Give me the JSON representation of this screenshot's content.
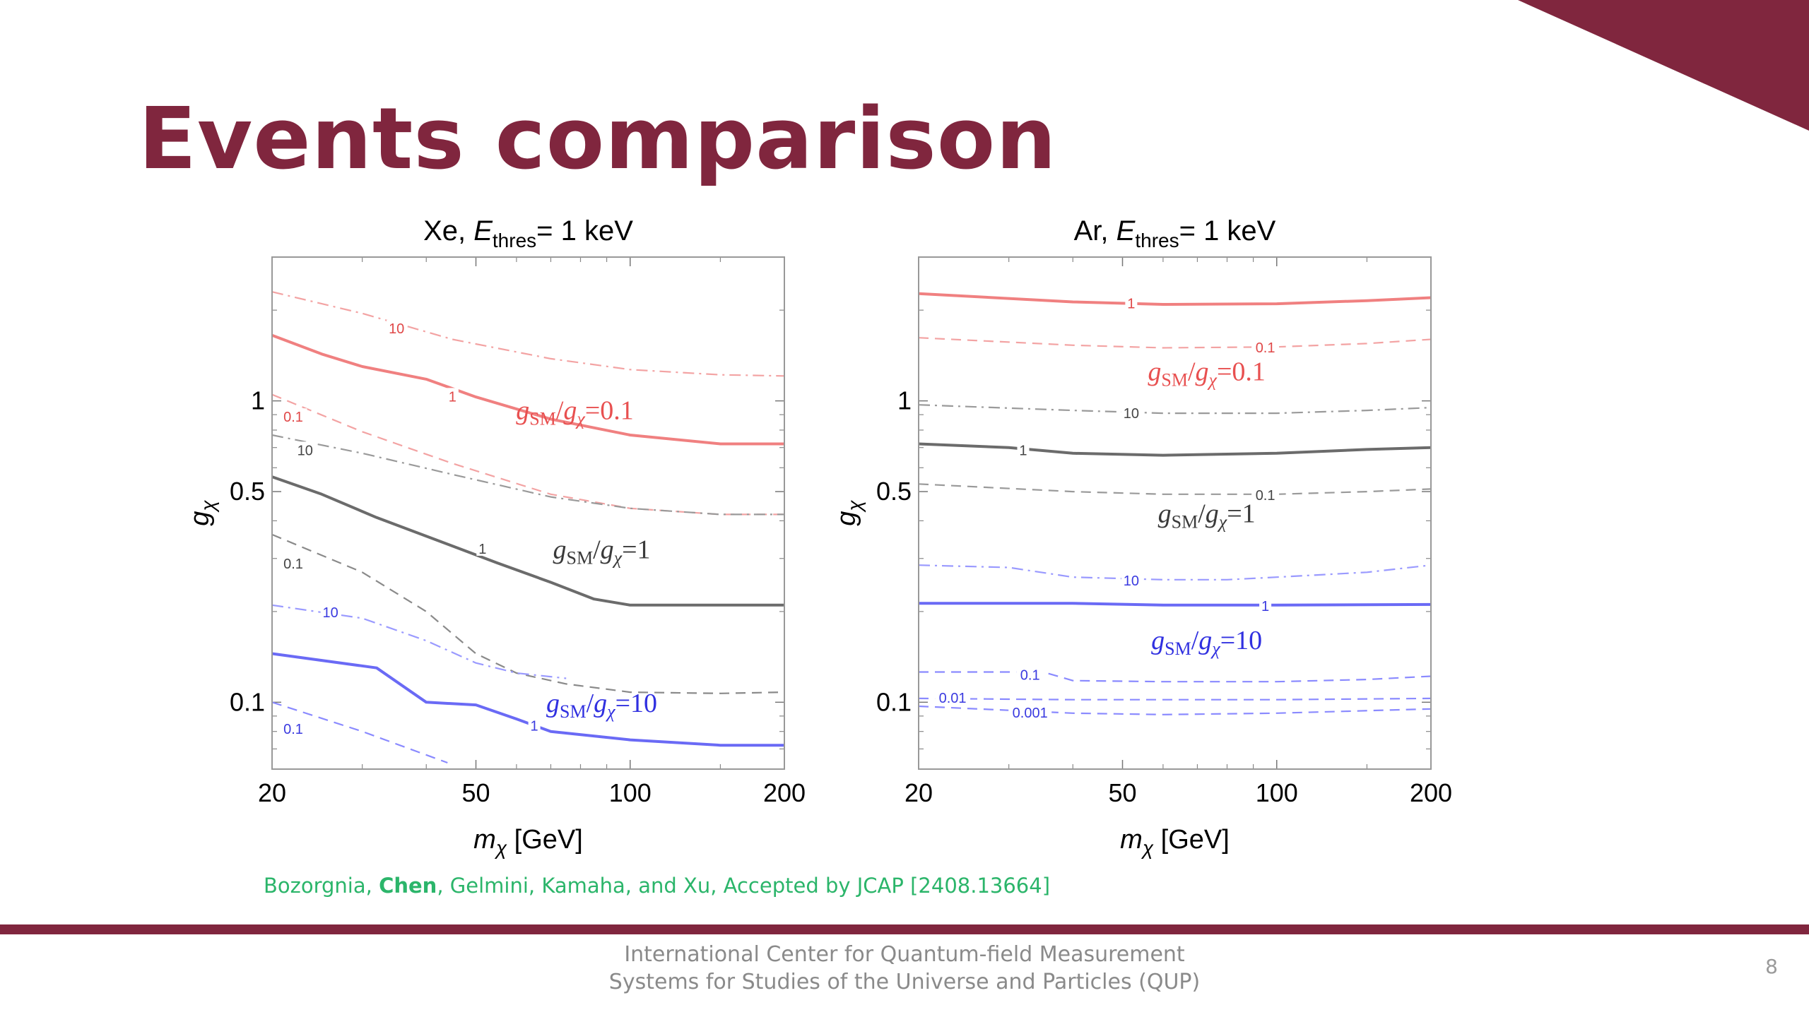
{
  "slide": {
    "title": "Events comparison",
    "citation": {
      "before": "Bozorgnia, ",
      "highlight": "Chen",
      "after": ", Gelmini, Kamaha, and Xu, Accepted by JCAP [2408.13664]"
    },
    "footer_line1": "International Center for Quantum-field Measurement",
    "footer_line2": "Systems for Studies of the Universe and Particles (QUP)",
    "page_number": "8",
    "colors": {
      "accent": "#80263e",
      "citation": "#2bb56a",
      "footer_text": "#8a8a8a"
    }
  },
  "chart_data": [
    {
      "type": "line",
      "panel": "Xe",
      "title": "Xe, E_thres= 1 keV",
      "title_parts": {
        "prefix": "Xe, ",
        "E": "E",
        "sub": "thres",
        "suffix": "= 1 keV"
      },
      "xlabel_parts": {
        "m": "m",
        "sub": "χ",
        "suffix": " [GeV]"
      },
      "ylabel_parts": {
        "g": "g",
        "sub": "χ"
      },
      "x_scale": "log",
      "y_scale": "log",
      "xlim": [
        20,
        200
      ],
      "ylim": [
        0.06,
        3.0
      ],
      "x_ticks": [
        20,
        50,
        100,
        200
      ],
      "x_tick_labels": [
        "20",
        "50",
        "100",
        "200"
      ],
      "y_ticks": [
        0.1,
        0.5,
        1
      ],
      "y_tick_labels": [
        "0.1",
        "0.5",
        "1"
      ],
      "series": [
        {
          "group": "red",
          "style": "dashdot",
          "contour": "10",
          "color": "#f3a3a3",
          "x": [
            20,
            30,
            45,
            70,
            100,
            150,
            200
          ],
          "y": [
            2.3,
            1.95,
            1.6,
            1.38,
            1.27,
            1.22,
            1.21
          ]
        },
        {
          "group": "red",
          "style": "solid",
          "contour": "1",
          "color": "#f08080",
          "x": [
            20,
            25,
            30,
            40,
            50,
            70,
            100,
            150,
            200
          ],
          "y": [
            1.65,
            1.43,
            1.3,
            1.18,
            1.03,
            0.87,
            0.77,
            0.72,
            0.72
          ]
        },
        {
          "group": "red",
          "style": "dashed",
          "contour": "0.1",
          "color": "#f3a3a3",
          "x": [
            20,
            30,
            45,
            70,
            100,
            150,
            200
          ],
          "y": [
            1.05,
            0.79,
            0.62,
            0.49,
            0.44,
            0.42,
            0.42
          ]
        },
        {
          "group": "black",
          "style": "dashdot",
          "contour": "10",
          "color": "#9a9a9a",
          "x": [
            20,
            30,
            45,
            70,
            100,
            150,
            200
          ],
          "y": [
            0.77,
            0.67,
            0.57,
            0.48,
            0.44,
            0.42,
            0.42
          ]
        },
        {
          "group": "black",
          "style": "solid",
          "contour": "1",
          "color": "#6b6b6b",
          "x": [
            20,
            25,
            32,
            45,
            55,
            70,
            85,
            100,
            140,
            200
          ],
          "y": [
            0.56,
            0.49,
            0.41,
            0.33,
            0.29,
            0.25,
            0.22,
            0.21,
            0.21,
            0.21
          ]
        },
        {
          "group": "black",
          "style": "dashed",
          "contour": "0.1",
          "color": "#8a8a8a",
          "x": [
            20,
            30,
            40,
            50,
            60,
            75,
            100,
            150,
            200
          ],
          "y": [
            0.36,
            0.27,
            0.2,
            0.145,
            0.125,
            0.115,
            0.108,
            0.107,
            0.108
          ]
        },
        {
          "group": "blue",
          "style": "dashdot",
          "contour": "10",
          "color": "#9a9aff",
          "x": [
            20,
            30,
            40,
            50,
            60,
            75
          ],
          "y": [
            0.21,
            0.19,
            0.16,
            0.135,
            0.125,
            0.12
          ]
        },
        {
          "group": "blue",
          "style": "solid",
          "contour": "1",
          "color": "#6a6af5",
          "x": [
            20,
            32,
            40,
            50,
            60,
            70,
            100,
            150,
            200
          ],
          "y": [
            0.145,
            0.13,
            0.1,
            0.098,
            0.088,
            0.08,
            0.075,
            0.072,
            0.072
          ]
        },
        {
          "group": "blue",
          "style": "dashed",
          "contour": "0.1",
          "color": "#8a8aff",
          "x": [
            20,
            30,
            44
          ],
          "y": [
            0.1,
            0.08,
            0.063
          ]
        }
      ],
      "contour_labels": [
        {
          "text": "10",
          "x": 35,
          "y": 1.75,
          "color": "#e04848"
        },
        {
          "text": "1",
          "x": 45,
          "y": 1.04,
          "color": "#e04848"
        },
        {
          "text": "0.1",
          "x": 22,
          "y": 0.89,
          "color": "#e04848"
        },
        {
          "text": "10",
          "x": 23.2,
          "y": 0.69,
          "color": "#444444"
        },
        {
          "text": "1",
          "x": 51.5,
          "y": 0.325,
          "color": "#444444"
        },
        {
          "text": "0.1",
          "x": 22,
          "y": 0.29,
          "color": "#444444"
        },
        {
          "text": "10",
          "x": 26,
          "y": 0.2,
          "color": "#3a3ae0"
        },
        {
          "text": "1",
          "x": 65,
          "y": 0.084,
          "color": "#3a3ae0"
        },
        {
          "text": "0.1",
          "x": 22,
          "y": 0.082,
          "color": "#3a3ae0"
        }
      ],
      "annotations": [
        {
          "ratio": "0.1",
          "x": 78,
          "y": 0.87,
          "color": "#e85050"
        },
        {
          "ratio": "1",
          "x": 88,
          "y": 0.3,
          "color": "#3a3a3a"
        },
        {
          "ratio": "10",
          "x": 88,
          "y": 0.093,
          "color": "#3030e0"
        }
      ]
    },
    {
      "type": "line",
      "panel": "Ar",
      "title": "Ar, E_thres= 1 keV",
      "title_parts": {
        "prefix": "Ar, ",
        "E": "E",
        "sub": "thres",
        "suffix": "= 1 keV"
      },
      "xlabel_parts": {
        "m": "m",
        "sub": "χ",
        "suffix": " [GeV]"
      },
      "ylabel_parts": {
        "g": "g",
        "sub": "χ"
      },
      "x_scale": "log",
      "y_scale": "log",
      "xlim": [
        20,
        200
      ],
      "ylim": [
        0.06,
        3.0
      ],
      "x_ticks": [
        20,
        50,
        100,
        200
      ],
      "x_tick_labels": [
        "20",
        "50",
        "100",
        "200"
      ],
      "y_ticks": [
        0.1,
        0.5,
        1
      ],
      "y_tick_labels": [
        "0.1",
        "0.5",
        "1"
      ],
      "series": [
        {
          "group": "red",
          "style": "solid",
          "contour": "1",
          "color": "#f08080",
          "x": [
            20,
            40,
            60,
            100,
            150,
            200
          ],
          "y": [
            2.27,
            2.13,
            2.09,
            2.1,
            2.15,
            2.2
          ]
        },
        {
          "group": "red",
          "style": "dashed",
          "contour": "0.1",
          "color": "#f3a3a3",
          "x": [
            20,
            40,
            60,
            100,
            150,
            200
          ],
          "y": [
            1.62,
            1.53,
            1.5,
            1.51,
            1.55,
            1.6
          ]
        },
        {
          "group": "black",
          "style": "dashdot",
          "contour": "10",
          "color": "#9a9a9a",
          "x": [
            20,
            40,
            60,
            100,
            150,
            200
          ],
          "y": [
            0.97,
            0.93,
            0.91,
            0.91,
            0.93,
            0.95
          ]
        },
        {
          "group": "black",
          "style": "solid",
          "contour": "1",
          "color": "#6b6b6b",
          "x": [
            20,
            30,
            40,
            60,
            100,
            150,
            200
          ],
          "y": [
            0.72,
            0.7,
            0.67,
            0.66,
            0.67,
            0.69,
            0.7
          ]
        },
        {
          "group": "black",
          "style": "dashed",
          "contour": "0.1",
          "color": "#9a9a9a",
          "x": [
            20,
            40,
            60,
            100,
            150,
            200
          ],
          "y": [
            0.53,
            0.5,
            0.49,
            0.49,
            0.5,
            0.51
          ]
        },
        {
          "group": "blue",
          "style": "dashdot",
          "contour": "10",
          "color": "#9a9aff",
          "x": [
            20,
            30,
            40,
            60,
            80,
            100,
            150,
            200
          ],
          "y": [
            0.285,
            0.28,
            0.26,
            0.255,
            0.255,
            0.26,
            0.27,
            0.285
          ]
        },
        {
          "group": "blue",
          "style": "solid",
          "contour": "1",
          "color": "#6a6af5",
          "x": [
            20,
            40,
            60,
            100,
            200
          ],
          "y": [
            0.213,
            0.213,
            0.21,
            0.21,
            0.211
          ]
        },
        {
          "group": "blue",
          "style": "dashed",
          "contour": "0.1",
          "color": "#8a8aff",
          "x": [
            20,
            35,
            40,
            60,
            100,
            150,
            200
          ],
          "y": [
            0.126,
            0.126,
            0.118,
            0.117,
            0.117,
            0.119,
            0.122
          ]
        },
        {
          "group": "blue",
          "style": "dashed",
          "contour": "0.01",
          "color": "#8a8aff",
          "x": [
            20,
            40,
            60,
            100,
            200
          ],
          "y": [
            0.103,
            0.102,
            0.102,
            0.102,
            0.103
          ]
        },
        {
          "group": "blue",
          "style": "dashed",
          "contour": "0.001",
          "color": "#8a8aff",
          "x": [
            20,
            40,
            60,
            100,
            200
          ],
          "y": [
            0.097,
            0.092,
            0.091,
            0.092,
            0.095
          ]
        }
      ],
      "contour_labels": [
        {
          "text": "1",
          "x": 52,
          "y": 2.12,
          "color": "#e04848"
        },
        {
          "text": "0.1",
          "x": 95,
          "y": 1.51,
          "color": "#e04848"
        },
        {
          "text": "10",
          "x": 52,
          "y": 0.915,
          "color": "#444444"
        },
        {
          "text": "1",
          "x": 32,
          "y": 0.69,
          "color": "#444444"
        },
        {
          "text": "0.1",
          "x": 95,
          "y": 0.49,
          "color": "#444444"
        },
        {
          "text": "10",
          "x": 52,
          "y": 0.255,
          "color": "#3a3ae0"
        },
        {
          "text": "1",
          "x": 95,
          "y": 0.21,
          "color": "#3a3ae0"
        },
        {
          "text": "0.1",
          "x": 33,
          "y": 0.124,
          "color": "#3a3ae0"
        },
        {
          "text": "0.01",
          "x": 23.3,
          "y": 0.104,
          "color": "#3a3ae0"
        },
        {
          "text": "0.001",
          "x": 33,
          "y": 0.093,
          "color": "#3a3ae0"
        }
      ],
      "annotations": [
        {
          "ratio": "0.1",
          "x": 73,
          "y": 1.17,
          "color": "#e85050"
        },
        {
          "ratio": "1",
          "x": 73,
          "y": 0.395,
          "color": "#3a3a3a"
        },
        {
          "ratio": "10",
          "x": 73,
          "y": 0.15,
          "color": "#3030e0"
        }
      ]
    }
  ]
}
